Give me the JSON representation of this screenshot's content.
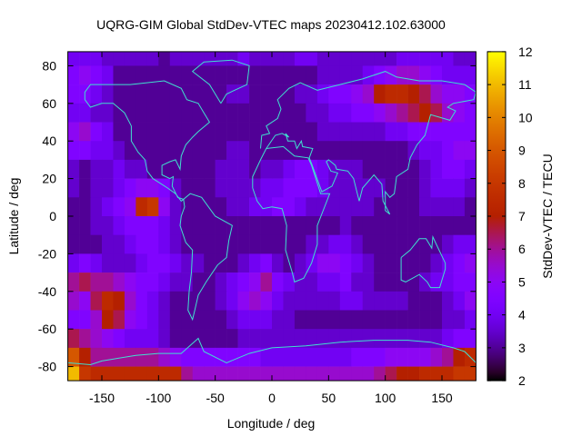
{
  "chart_data": {
    "type": "heatmap",
    "title": "UQRG-GIM Global StdDev-VTEC maps 20230412.102.63000",
    "xlabel": "Longitude / deg",
    "ylabel": "Latitude / deg",
    "colorbar_label": "StdDev-VTEC / TECU",
    "xlim": [
      -180,
      180
    ],
    "ylim": [
      -87.5,
      87.5
    ],
    "clim": [
      2,
      12
    ],
    "xticks": [
      "-150",
      "-100",
      "-50",
      "0",
      "50",
      "100",
      "150"
    ],
    "xtick_values": [
      -150,
      -100,
      -50,
      0,
      50,
      100,
      150
    ],
    "yticks": [
      "80",
      "60",
      "40",
      "20",
      "0",
      "-20",
      "-40",
      "-60",
      "-80"
    ],
    "ytick_values": [
      80,
      60,
      40,
      20,
      0,
      -20,
      -40,
      -60,
      -80
    ],
    "cticks": [
      "2",
      "3",
      "4",
      "5",
      "6",
      "7",
      "8",
      "9",
      "10",
      "11",
      "12"
    ],
    "ctick_values": [
      2,
      3,
      4,
      5,
      6,
      7,
      8,
      9,
      10,
      11,
      12
    ],
    "palette": "gnuplot rgbformulae 7,5,15 (black-blue-violet-red-yellow)",
    "coastline_color": "#40e0d0",
    "grid": false,
    "lon_centers": [
      -175,
      -165,
      -155,
      -145,
      -135,
      -125,
      -115,
      -105,
      -95,
      -85,
      -75,
      -65,
      -55,
      -45,
      -35,
      -25,
      -15,
      -5,
      5,
      15,
      25,
      35,
      45,
      55,
      65,
      75,
      85,
      95,
      105,
      115,
      125,
      135,
      145,
      155,
      165,
      175
    ],
    "lat_centers": [
      85,
      75,
      65,
      55,
      45,
      35,
      25,
      15,
      5,
      -5,
      -15,
      -25,
      -35,
      -45,
      -55,
      -65,
      -75,
      -85
    ],
    "values": [
      [
        4,
        4,
        4,
        3.5,
        3.5,
        3.5,
        3.5,
        3.5,
        3,
        3.5,
        3.5,
        3.5,
        3.5,
        3.5,
        3.5,
        4,
        3.5,
        3.5,
        3.5,
        3.5,
        4,
        4,
        3.5,
        3.5,
        3.5,
        3.5,
        3.5,
        3.5,
        3.5,
        4,
        4,
        4,
        4,
        4,
        3.5,
        3.5
      ],
      [
        4.5,
        5,
        4.5,
        4,
        3,
        3,
        3,
        3,
        3,
        3,
        3,
        3,
        3,
        3,
        3,
        3,
        3,
        3,
        3,
        3,
        3,
        3,
        3.5,
        3.5,
        3.5,
        3.5,
        4,
        4.5,
        5,
        5.5,
        5.5,
        5,
        4.5,
        4,
        4,
        4
      ],
      [
        4.5,
        4.5,
        4,
        3.5,
        3,
        3,
        3,
        3,
        3,
        3,
        3,
        3,
        3,
        3,
        3.5,
        3.5,
        3,
        3,
        3,
        3,
        3.5,
        3.5,
        4,
        4.5,
        4.5,
        5,
        5.5,
        7,
        7.5,
        7.5,
        7,
        6.5,
        5.5,
        5,
        5,
        4.5
      ],
      [
        4,
        4,
        3.5,
        3.5,
        3,
        3,
        3,
        3,
        3,
        3,
        3,
        3,
        3,
        3,
        3,
        3,
        3,
        3,
        3,
        3,
        3,
        3.5,
        3.5,
        4,
        4,
        4.5,
        4.5,
        5,
        5.5,
        6,
        6.5,
        7,
        6.5,
        5.5,
        5,
        4.5
      ],
      [
        5,
        5.5,
        4.5,
        4,
        3,
        3,
        3,
        3,
        3,
        3,
        3,
        3,
        3,
        3,
        3,
        3,
        3,
        3,
        3,
        3,
        3,
        3,
        3.5,
        3.5,
        3.5,
        3.5,
        3.5,
        3.5,
        4,
        4,
        4.5,
        4.5,
        4.5,
        4.5,
        4.5,
        4.5
      ],
      [
        4.5,
        4.5,
        4,
        4,
        3.5,
        3,
        3,
        3,
        3,
        3,
        3,
        3,
        3,
        3,
        3.5,
        3.5,
        3,
        3,
        3,
        3,
        3,
        3,
        3,
        3,
        3,
        3,
        3,
        3,
        3,
        3,
        3.5,
        4,
        4,
        4.5,
        5,
        5
      ],
      [
        3.5,
        3,
        3.5,
        3.5,
        4,
        3.5,
        3.5,
        3,
        3,
        3,
        3,
        3,
        3,
        3.5,
        3.5,
        3.5,
        3,
        3.5,
        3.5,
        4,
        4.5,
        4.5,
        4,
        3.5,
        3.5,
        3.5,
        3,
        3,
        3,
        3,
        3,
        3.5,
        4,
        4.5,
        4.5,
        4
      ],
      [
        3.5,
        3,
        3.5,
        3.5,
        4,
        4.5,
        5,
        5,
        4.5,
        3.5,
        3,
        3,
        3,
        3.5,
        3.5,
        3.5,
        3.5,
        4,
        4,
        4.5,
        4.5,
        4.5,
        4,
        3.5,
        3.5,
        3.5,
        3.5,
        3.5,
        3,
        3,
        3,
        3.5,
        4,
        4,
        4,
        3.5
      ],
      [
        3,
        3,
        3.5,
        4,
        4.5,
        5,
        7.5,
        8,
        5,
        3.5,
        3,
        3,
        3,
        3,
        3.5,
        3.5,
        4,
        4,
        4.5,
        4.5,
        4,
        3.5,
        3.5,
        3.5,
        3.5,
        3.5,
        3.5,
        3,
        3,
        3,
        3,
        3.5,
        3.5,
        3.5,
        3.5,
        3
      ],
      [
        3,
        3,
        3.5,
        3.5,
        4,
        4.5,
        4.5,
        4.5,
        4,
        3.5,
        3,
        3,
        3,
        3,
        3,
        3,
        3,
        3,
        3,
        3,
        3,
        3,
        3,
        3,
        3.5,
        3,
        3,
        3,
        3,
        3,
        3,
        3,
        3,
        3,
        3,
        3
      ],
      [
        3,
        3,
        3,
        3.5,
        3.5,
        4,
        4.5,
        4.5,
        4,
        3.5,
        3,
        3,
        3,
        3,
        3,
        3,
        3,
        3,
        3,
        3,
        3,
        3.5,
        3.5,
        4,
        4,
        3.5,
        3,
        3,
        3,
        3,
        3,
        3,
        3,
        3.5,
        4,
        4
      ],
      [
        4,
        4.5,
        4,
        3.5,
        3.5,
        3.5,
        4,
        4.5,
        4.5,
        4,
        3.5,
        3.5,
        3,
        3,
        3,
        3.5,
        4,
        4.5,
        3.5,
        3,
        3.5,
        4,
        5,
        5,
        4.5,
        4,
        3.5,
        3,
        3,
        3,
        3,
        3,
        3.5,
        4,
        4.5,
        5
      ],
      [
        6,
        6.5,
        6,
        6,
        5.5,
        5,
        4.5,
        4.5,
        4,
        3.5,
        3.5,
        3,
        3,
        3.5,
        4,
        4.5,
        5,
        6,
        4.5,
        4,
        3.5,
        3.5,
        4,
        4,
        4.5,
        3.5,
        3.5,
        3,
        3,
        3,
        3,
        3.5,
        4,
        4,
        4.5,
        4.5
      ],
      [
        5.5,
        5,
        6.5,
        7.5,
        7,
        5.5,
        4.5,
        4,
        3.5,
        3,
        3,
        3,
        3,
        3.5,
        4,
        5,
        5.5,
        5,
        4,
        3.5,
        3.5,
        3.5,
        3.5,
        3.5,
        4,
        4,
        3.5,
        3.5,
        3.5,
        3.5,
        3,
        3,
        3,
        3.5,
        4,
        5
      ],
      [
        4.5,
        4.5,
        5.5,
        7,
        6.5,
        5,
        4.5,
        4,
        3.5,
        3,
        3,
        3,
        3,
        3,
        3.5,
        4,
        4,
        4,
        3.5,
        3.5,
        3,
        3,
        3,
        3,
        3,
        3,
        3,
        3,
        3,
        3,
        3,
        3,
        3,
        3.5,
        3.5,
        4
      ],
      [
        6.5,
        6,
        5.5,
        5,
        4.5,
        4,
        4,
        4,
        3.5,
        3,
        3,
        3,
        3,
        3,
        3,
        3.5,
        3.5,
        3.5,
        3.5,
        3.5,
        3.5,
        3.5,
        3.5,
        3.5,
        3.5,
        3.5,
        3.5,
        3.5,
        3.5,
        3.5,
        3.5,
        3.5,
        3.5,
        4,
        4.5,
        4.5
      ],
      [
        9,
        7,
        6,
        6,
        6,
        6,
        6,
        6,
        5.5,
        5,
        4.5,
        4.5,
        4.5,
        4.5,
        4.5,
        4.5,
        4.5,
        4,
        4,
        4,
        4,
        4,
        4,
        4,
        4,
        4.5,
        4.5,
        4.5,
        5,
        5,
        5,
        5,
        5.5,
        6,
        7,
        7.5
      ],
      [
        11,
        8,
        7.5,
        7.5,
        7.5,
        7.5,
        7.5,
        7.5,
        7.5,
        7.5,
        6,
        5.5,
        5.5,
        5.5,
        5.5,
        5.5,
        5.5,
        5.5,
        5.5,
        5.5,
        5.5,
        5.5,
        5.5,
        5.5,
        5.5,
        5.5,
        5.5,
        6,
        6.5,
        7,
        7,
        7.5,
        7.5,
        7.5,
        8,
        8
      ]
    ]
  }
}
